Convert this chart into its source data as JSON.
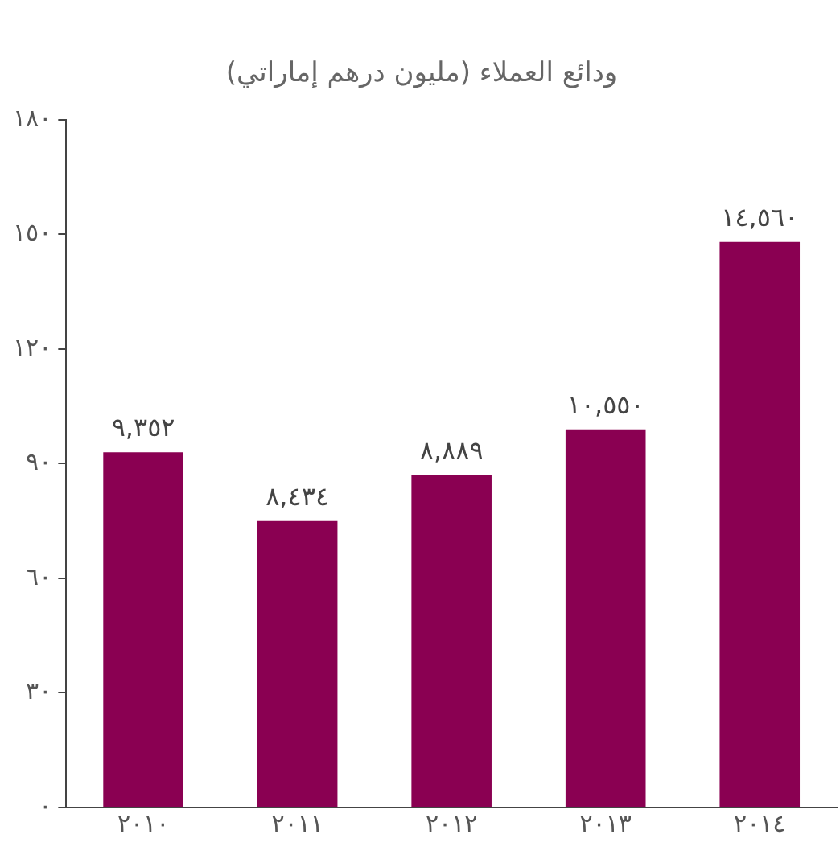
{
  "chart_data": {
    "type": "bar",
    "title": "ودائع العملاء (مليون درهم إماراتي)",
    "categories": [
      "٢٠١٠",
      "٢٠١١",
      "٢٠١٢",
      "٢٠١٣",
      "٢٠١٤"
    ],
    "values": [
      93,
      75,
      87,
      99,
      148
    ],
    "annotations": [
      {
        "text": "٩,٣٥٢",
        "x": "٢٠١٠",
        "y": 93
      },
      {
        "text": "٨,٤٣٤",
        "x": "٢٠١١",
        "y": 75
      },
      {
        "text": "٨,٨٨٩",
        "x": "٢٠١٢",
        "y": 87
      },
      {
        "text": "١٠,٥٥٠",
        "x": "٢٠١٣",
        "y": 99
      },
      {
        "text": "١٤,٥٦٠",
        "x": "٢٠١٤",
        "y": 148
      }
    ],
    "color": "#8a0052",
    "ylim": [
      0,
      180
    ],
    "yticks": [
      {
        "value": 0,
        "label": "٠"
      },
      {
        "value": 30,
        "label": "٣٠"
      },
      {
        "value": 60,
        "label": "٦٠"
      },
      {
        "value": 90,
        "label": "٩٠"
      },
      {
        "value": 120,
        "label": "١٢٠"
      },
      {
        "value": 150,
        "label": "١٥٠"
      },
      {
        "value": 180,
        "label": "١٨٠"
      }
    ],
    "grid": false,
    "legend": false
  }
}
